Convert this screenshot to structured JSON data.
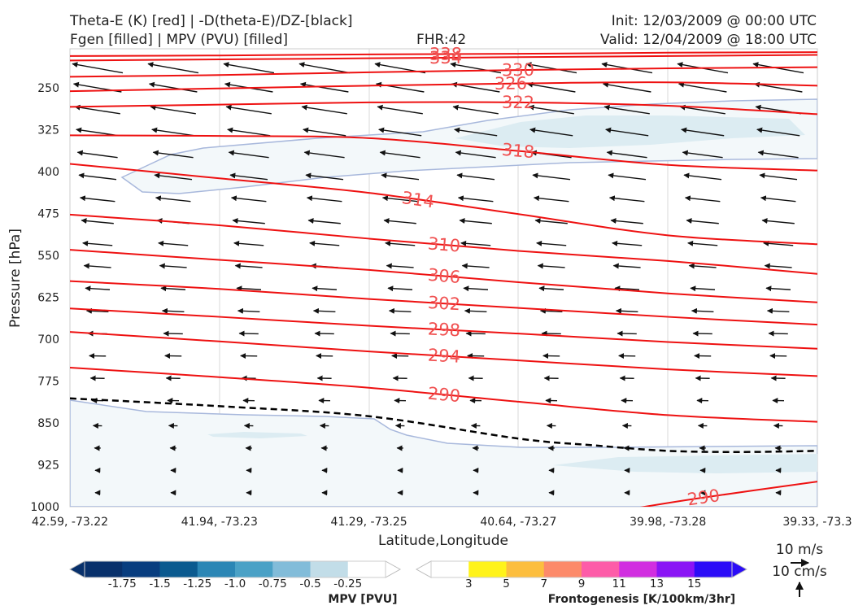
{
  "header": {
    "title_line1": "Theta-E (K) [red] | -D(theta-E)/DZ-[black]",
    "title_line2": "Fgen [filled] | MPV (PVU) [filled]",
    "fhr": "FHR:42",
    "init": "Init: 12/03/2009 @ 00:00 UTC",
    "valid": "Valid: 12/04/2009 @ 18:00 UTC"
  },
  "chart_data": {
    "type": "cross-section",
    "xlabel": "Latitude,Longitude",
    "ylabel": "Pressure [hPa]",
    "x_ticks": [
      "42.59, -73.22",
      "41.94, -73.23",
      "41.29, -73.25",
      "40.64, -73.27",
      "39.98, -73.28",
      "39.33, -73.3"
    ],
    "y_ticks": [
      250,
      325,
      400,
      475,
      550,
      625,
      700,
      775,
      850,
      925,
      1000
    ],
    "ylim": [
      1000,
      180
    ],
    "theta_e_contours": [
      {
        "label": "338",
        "points": [
          [
            0,
            193
          ],
          [
            1,
            192
          ],
          [
            2,
            190
          ],
          [
            3,
            189
          ],
          [
            4,
            187
          ],
          [
            5,
            186
          ]
        ]
      },
      {
        "label": "334",
        "points": [
          [
            0,
            201
          ],
          [
            1,
            199
          ],
          [
            2,
            197
          ],
          [
            3,
            195
          ],
          [
            4,
            193
          ],
          [
            5,
            191
          ]
        ]
      },
      {
        "label": "330",
        "points": [
          [
            0,
            230
          ],
          [
            1,
            227
          ],
          [
            2,
            222
          ],
          [
            3,
            218
          ],
          [
            4,
            215
          ],
          [
            5,
            213
          ]
        ]
      },
      {
        "label": "326",
        "points": [
          [
            0,
            256
          ],
          [
            1,
            251
          ],
          [
            2,
            246
          ],
          [
            3,
            242
          ],
          [
            4,
            240
          ],
          [
            5,
            246
          ]
        ]
      },
      {
        "label": "322",
        "points": [
          [
            0,
            284
          ],
          [
            1,
            280
          ],
          [
            2,
            276
          ],
          [
            3,
            276
          ],
          [
            4,
            282
          ],
          [
            5,
            297
          ]
        ]
      },
      {
        "label": "318",
        "points": [
          [
            0,
            335
          ],
          [
            1,
            336
          ],
          [
            2,
            340
          ],
          [
            3,
            363
          ],
          [
            4,
            388
          ],
          [
            5,
            398
          ]
        ]
      },
      {
        "label": "314",
        "points": [
          [
            0,
            386
          ],
          [
            1,
            412
          ],
          [
            2,
            438
          ],
          [
            3,
            476
          ],
          [
            4,
            514
          ],
          [
            5,
            530
          ]
        ]
      },
      {
        "label": "310",
        "points": [
          [
            0,
            477
          ],
          [
            1,
            496
          ],
          [
            2,
            520
          ],
          [
            3,
            542
          ],
          [
            4,
            560
          ],
          [
            5,
            583
          ]
        ]
      },
      {
        "label": "306",
        "points": [
          [
            0,
            540
          ],
          [
            1,
            558
          ],
          [
            2,
            576
          ],
          [
            3,
            598
          ],
          [
            4,
            618
          ],
          [
            5,
            634
          ]
        ]
      },
      {
        "label": "302",
        "points": [
          [
            0,
            596
          ],
          [
            1,
            610
          ],
          [
            2,
            628
          ],
          [
            3,
            644
          ],
          [
            4,
            660
          ],
          [
            5,
            674
          ]
        ]
      },
      {
        "label": "298",
        "points": [
          [
            0,
            645
          ],
          [
            1,
            660
          ],
          [
            2,
            676
          ],
          [
            3,
            690
          ],
          [
            4,
            705
          ],
          [
            5,
            717
          ]
        ]
      },
      {
        "label": "294",
        "points": [
          [
            0,
            687
          ],
          [
            1,
            704
          ],
          [
            2,
            722
          ],
          [
            3,
            738
          ],
          [
            4,
            754
          ],
          [
            5,
            766
          ]
        ]
      },
      {
        "label": "290",
        "points": [
          [
            0,
            751
          ],
          [
            1,
            768
          ],
          [
            2,
            787
          ],
          [
            3,
            812
          ],
          [
            4,
            836
          ],
          [
            5,
            848
          ]
        ]
      },
      {
        "label": "290",
        "points": [
          [
            3.8,
            1002
          ],
          [
            4.2,
            985
          ],
          [
            5,
            955
          ]
        ]
      }
    ],
    "dthetae_dz_zero_line": [
      [
        0,
        806
      ],
      [
        1,
        820
      ],
      [
        2,
        838
      ],
      [
        3,
        878
      ],
      [
        3.5,
        890
      ],
      [
        4,
        900
      ],
      [
        4.5,
        902
      ],
      [
        5,
        900
      ]
    ],
    "mpv_colorbar": {
      "label": "MPV [PVU]",
      "ticks": [
        "-1.75",
        "-1.5",
        "-1.25",
        "-1.0",
        "-0.75",
        "-0.5",
        "-0.25"
      ],
      "colors": [
        "#08306b",
        "#083d7f",
        "#0b5a8f",
        "#2b86b5",
        "#4aa1c6",
        "#82bcd9",
        "#c2dde8",
        "#ffffff"
      ]
    },
    "fgen_colorbar": {
      "label": "Frontogenesis [K/100km/3hr]",
      "ticks": [
        "3",
        "5",
        "7",
        "9",
        "11",
        "13",
        "15"
      ],
      "colors": [
        "#ffffff",
        "#fff31a",
        "#fcbe3e",
        "#fc8a6a",
        "#fd5ca8",
        "#d12ee0",
        "#8a14f5",
        "#2b0cf7"
      ]
    },
    "wind_key": {
      "horizontal": "10 m/s",
      "vertical": "10 cm/s"
    }
  }
}
